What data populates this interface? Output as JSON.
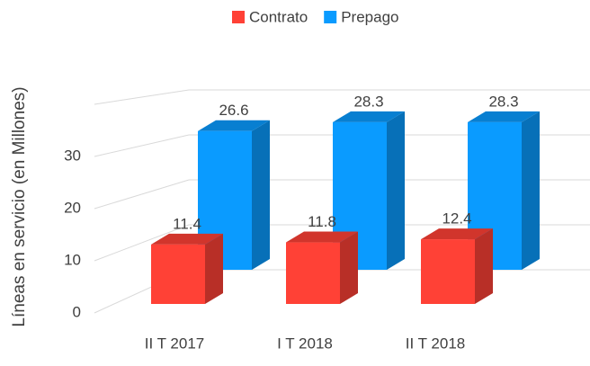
{
  "chart_data": {
    "type": "bar3d",
    "y_label": "Líneas en servicio (en Millones)",
    "categories": [
      "II T 2017",
      "I T 2018",
      "II T 2018"
    ],
    "series": [
      {
        "name": "Contrato",
        "color": "#ff4136",
        "values": [
          11.4,
          11.8,
          12.4
        ]
      },
      {
        "name": "Prepago",
        "color": "#0a9bff",
        "values": [
          26.6,
          28.3,
          28.3
        ]
      }
    ],
    "ylim": [
      0,
      40
    ],
    "yticks": [
      0,
      10,
      20,
      30
    ],
    "grid": true,
    "legend": "top"
  }
}
